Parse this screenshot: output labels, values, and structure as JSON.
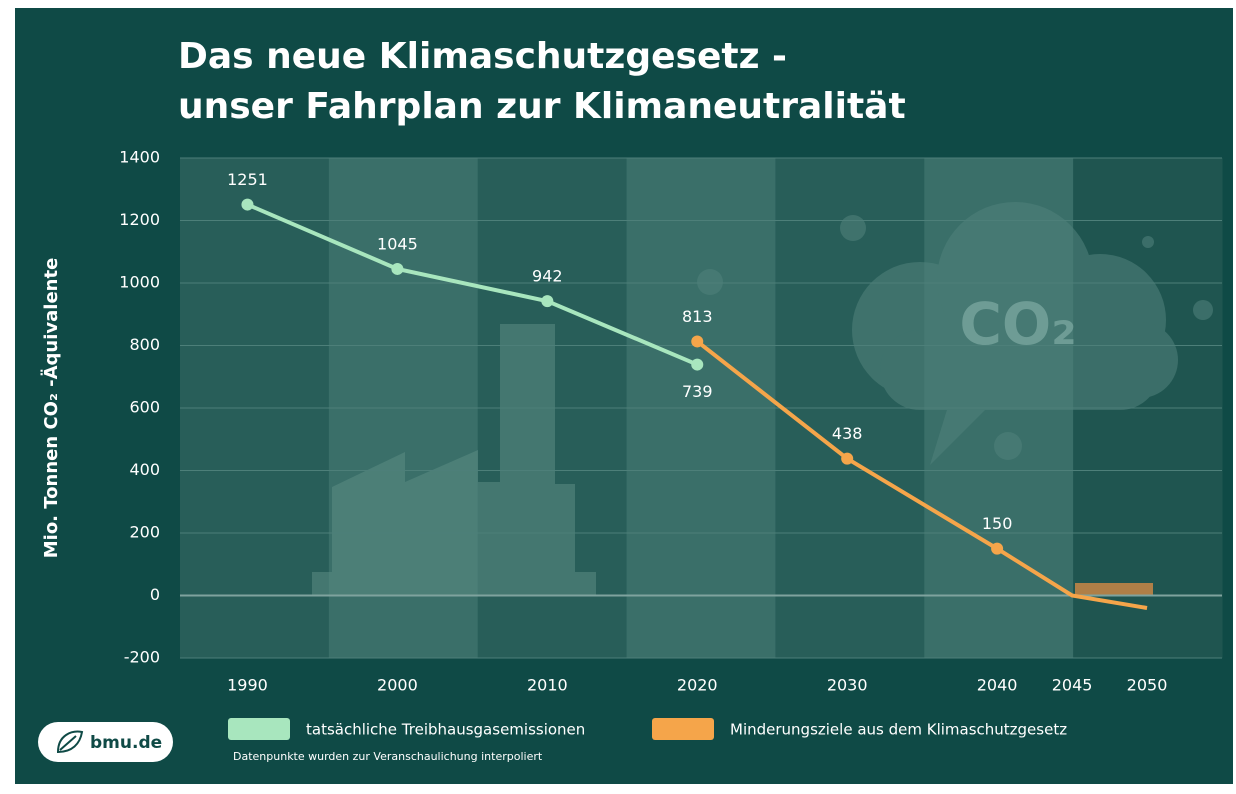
{
  "chart_data": {
    "type": "line",
    "title": [
      "Das neue Klimaschutzgesetz -",
      "unser Fahrplan zur Klimaneutralität"
    ],
    "y_label": "Mio. Tonnen CO₂ -Äquivalente",
    "xlim": [
      1985.5,
      2055
    ],
    "ylim": [
      -200,
      1400
    ],
    "xticks": [
      1990,
      2000,
      2010,
      2020,
      2030,
      2040,
      2045,
      2050
    ],
    "yticks": [
      -200,
      0,
      200,
      400,
      600,
      800,
      1000,
      1200,
      1400
    ],
    "grid": true,
    "series": [
      {
        "name": "tatsächliche Treibhausgasemissionen",
        "color": "#a8e6be",
        "x": [
          1990,
          2000,
          2010,
          2020
        ],
        "values": [
          1251,
          1045,
          942,
          739
        ],
        "show_points": [
          true,
          true,
          true,
          true
        ]
      },
      {
        "name": "Minderungsziele aus dem Klimaschutzgesetz",
        "color": "#f5a54a",
        "x": [
          2020,
          2030,
          2040,
          2045,
          2050
        ],
        "values": [
          813,
          438,
          150,
          0,
          -40
        ],
        "show_points": [
          true,
          true,
          true,
          false,
          false
        ]
      }
    ],
    "note": "Datenpunkte wurden zur Veranschaulichung interpoliert",
    "decoration_text": "CO₂",
    "logo": "bmu.de"
  }
}
